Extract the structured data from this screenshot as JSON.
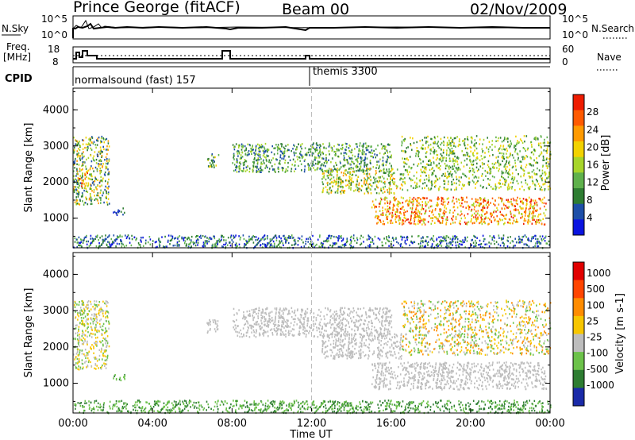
{
  "header": {
    "station": "Prince George (fitACF)",
    "beam": "Beam 00",
    "date": "02/Nov/2009"
  },
  "noise_panel": {
    "left_label": "N.Sky",
    "right_label": "N.Search",
    "left_ticks": [
      "10^5",
      "10^0"
    ],
    "right_ticks": [
      "10^5",
      "10^0"
    ]
  },
  "freq_panel": {
    "left_label_line1": "Freq.",
    "left_label_line2": "[MHz]",
    "right_label": "Nave",
    "left_ticks": [
      "18",
      "8"
    ],
    "right_ticks": [
      "60",
      "0"
    ]
  },
  "cpid": {
    "label": "CPID",
    "segments": [
      "normalsound (fast) 157",
      "themis 3300"
    ]
  },
  "chart_data": [
    {
      "type": "heatmap",
      "title": "Power",
      "ylabel": "Slant Range [km]",
      "xlabel": "Time UT",
      "ylim": [
        180,
        4600
      ],
      "xlim": [
        0,
        24
      ],
      "yticks": [
        "1000",
        "2000",
        "3000",
        "4000"
      ],
      "xticks": [
        "00:00",
        "04:00",
        "08:00",
        "12:00",
        "16:00",
        "20:00",
        "00:00"
      ],
      "colorbar_label": "Power [dB]",
      "colorbar_ticks": [
        "28",
        "24",
        "20",
        "16",
        "12",
        "8",
        "4"
      ],
      "colors": [
        "#0a14e0",
        "#1e4fa8",
        "#2e7d32",
        "#5fb14c",
        "#a7d52a",
        "#f2d200",
        "#ff9a00",
        "#ff5a00",
        "#ee1c00"
      ],
      "scatter_regions": [
        {
          "t0": 0.0,
          "t1": 1.8,
          "r0": 1400,
          "r1": 3300,
          "level": [
            1,
            6
          ]
        },
        {
          "t0": 0.3,
          "t1": 0.7,
          "r0": 1900,
          "r1": 2400,
          "level": [
            5,
            8
          ]
        },
        {
          "t0": 2.0,
          "t1": 2.6,
          "r0": 1100,
          "r1": 1300,
          "level": [
            0,
            2
          ]
        },
        {
          "t0": 6.7,
          "t1": 7.3,
          "r0": 2400,
          "r1": 2800,
          "level": [
            1,
            5
          ]
        },
        {
          "t0": 8.0,
          "t1": 16.0,
          "r0": 2300,
          "r1": 3100,
          "level": [
            1,
            4
          ]
        },
        {
          "t0": 12.5,
          "t1": 16.5,
          "r0": 1700,
          "r1": 2400,
          "level": [
            2,
            6
          ]
        },
        {
          "t0": 15.0,
          "t1": 23.8,
          "r0": 850,
          "r1": 1600,
          "level": [
            4,
            8
          ]
        },
        {
          "t0": 16.5,
          "t1": 24.0,
          "r0": 1800,
          "r1": 3300,
          "level": [
            2,
            5
          ]
        },
        {
          "t0": 0.0,
          "t1": 24.0,
          "r0": 200,
          "r1": 550,
          "level": [
            0,
            3
          ]
        }
      ],
      "event_line": 12.0
    },
    {
      "type": "heatmap",
      "title": "Velocity",
      "ylabel": "Slant Range [km]",
      "xlabel": "Time UT",
      "ylim": [
        180,
        4600
      ],
      "xlim": [
        0,
        24
      ],
      "yticks": [
        "1000",
        "2000",
        "3000",
        "4000"
      ],
      "xticks": [
        "00:00",
        "04:00",
        "08:00",
        "12:00",
        "16:00",
        "20:00",
        "00:00"
      ],
      "colorbar_label": "Velocity [m s-1]",
      "colorbar_ticks": [
        "1000",
        "500",
        "100",
        "25",
        "-25",
        "-100",
        "-500",
        "-1000"
      ],
      "colors": [
        "#1a2aa8",
        "#2e7d32",
        "#6cc24a",
        "#bdbdbd",
        "#f7c600",
        "#ff8c00",
        "#ff4500",
        "#e10000"
      ],
      "scatter_regions": [
        {
          "t0": 0.0,
          "t1": 1.8,
          "r0": 1400,
          "r1": 3300,
          "level": [
            2,
            4
          ]
        },
        {
          "t0": 2.0,
          "t1": 2.6,
          "r0": 1100,
          "r1": 1300,
          "level": [
            1,
            2
          ]
        },
        {
          "t0": 6.7,
          "t1": 7.3,
          "r0": 2400,
          "r1": 2800,
          "level": [
            3,
            3
          ]
        },
        {
          "t0": 8.0,
          "t1": 16.0,
          "r0": 2300,
          "r1": 3100,
          "level": [
            3,
            3
          ]
        },
        {
          "t0": 12.5,
          "t1": 16.5,
          "r0": 1700,
          "r1": 2400,
          "level": [
            3,
            3
          ]
        },
        {
          "t0": 15.0,
          "t1": 23.8,
          "r0": 850,
          "r1": 1600,
          "level": [
            3,
            3
          ]
        },
        {
          "t0": 16.5,
          "t1": 24.0,
          "r0": 1800,
          "r1": 3300,
          "level": [
            2,
            5
          ]
        },
        {
          "t0": 0.0,
          "t1": 24.0,
          "r0": 200,
          "r1": 550,
          "level": [
            1,
            2
          ]
        }
      ],
      "event_line": 12.0
    }
  ]
}
